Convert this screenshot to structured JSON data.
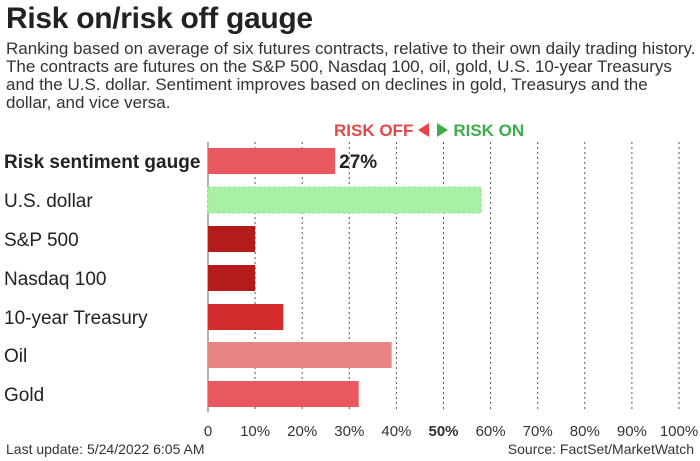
{
  "title": "Risk on/risk off gauge",
  "subtitle": "Ranking based on average of six futures contracts, relative to their own daily trading history. The contracts are futures on the S&P 500, Nasdaq 100, oil, gold, U.S. 10-year Treasurys and the U.S. dollar. Sentiment improves based on declines in gold, Treasurys and the dollar, and vice versa.",
  "legend": {
    "risk_off": "RISK OFF",
    "risk_on": "RISK ON"
  },
  "footer": {
    "last_update": "Last update: 5/24/2022 6:05 AM",
    "source": "Source: FactSet/MarketWatch"
  },
  "chart_data": {
    "type": "bar",
    "orientation": "horizontal",
    "categories": [
      "Risk sentiment gauge",
      "U.S. dollar",
      "S&P 500",
      "Nasdaq 100",
      "10-year Treasury",
      "Oil",
      "Gold"
    ],
    "values": [
      27,
      58,
      10,
      10,
      16,
      39,
      32
    ],
    "bar_colors": [
      "#e8585e",
      "#a7f0a4",
      "#b51b1b",
      "#b51b1b",
      "#d42c2c",
      "#e88484",
      "#e8585e"
    ],
    "value_labels": [
      "27%",
      "",
      "",
      "",
      "",
      "",
      ""
    ],
    "xlim": [
      0,
      100
    ],
    "xticks": [
      "0",
      "10%",
      "20%",
      "30%",
      "40%",
      "50%",
      "60%",
      "70%",
      "80%",
      "90%",
      "100%"
    ],
    "bold_tick": "50%",
    "bold_category": "Risk sentiment gauge",
    "grid": "vertical dotted",
    "midline_at": 50
  }
}
